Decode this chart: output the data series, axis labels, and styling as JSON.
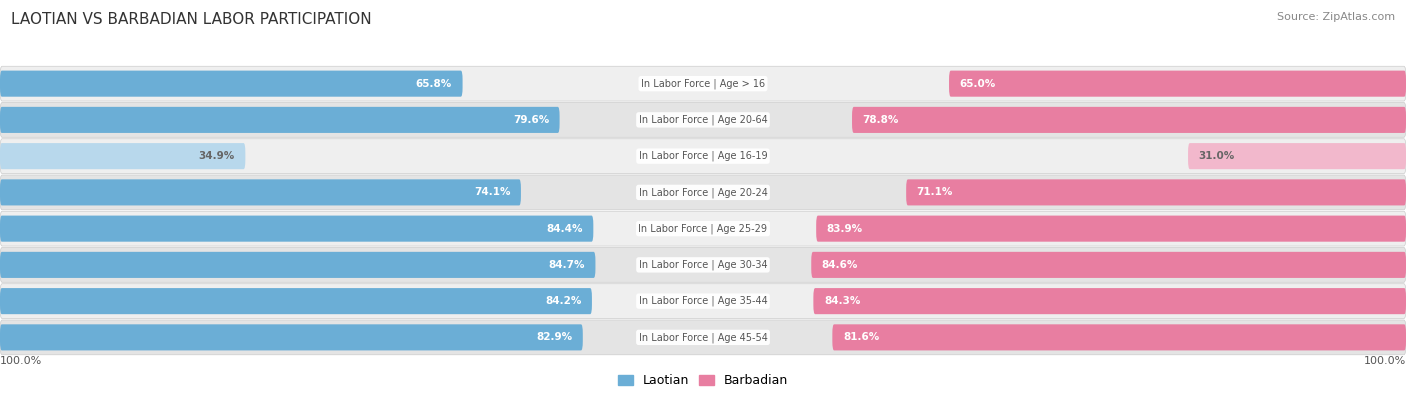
{
  "title": "LAOTIAN VS BARBADIAN LABOR PARTICIPATION",
  "source": "Source: ZipAtlas.com",
  "categories": [
    "In Labor Force | Age > 16",
    "In Labor Force | Age 20-64",
    "In Labor Force | Age 16-19",
    "In Labor Force | Age 20-24",
    "In Labor Force | Age 25-29",
    "In Labor Force | Age 30-34",
    "In Labor Force | Age 35-44",
    "In Labor Force | Age 45-54"
  ],
  "laotian": [
    65.8,
    79.6,
    34.9,
    74.1,
    84.4,
    84.7,
    84.2,
    82.9
  ],
  "barbadian": [
    65.0,
    78.8,
    31.0,
    71.1,
    83.9,
    84.6,
    84.3,
    81.6
  ],
  "laotian_color": "#6baed6",
  "barbadian_color": "#e87ea1",
  "laotian_color_light": "#b8d8ec",
  "barbadian_color_light": "#f2b8cc",
  "row_bg_colors": [
    "#efefef",
    "#e4e4e4",
    "#efefef",
    "#e4e4e4",
    "#efefef",
    "#e4e4e4",
    "#efefef",
    "#e4e4e4"
  ],
  "max_val": 100.0,
  "legend_laotian": "Laotian",
  "legend_barbadian": "Barbadian",
  "title_color": "#333333",
  "source_color": "#888888",
  "label_color_dark": "#555555",
  "value_label_color_light": "#666666"
}
